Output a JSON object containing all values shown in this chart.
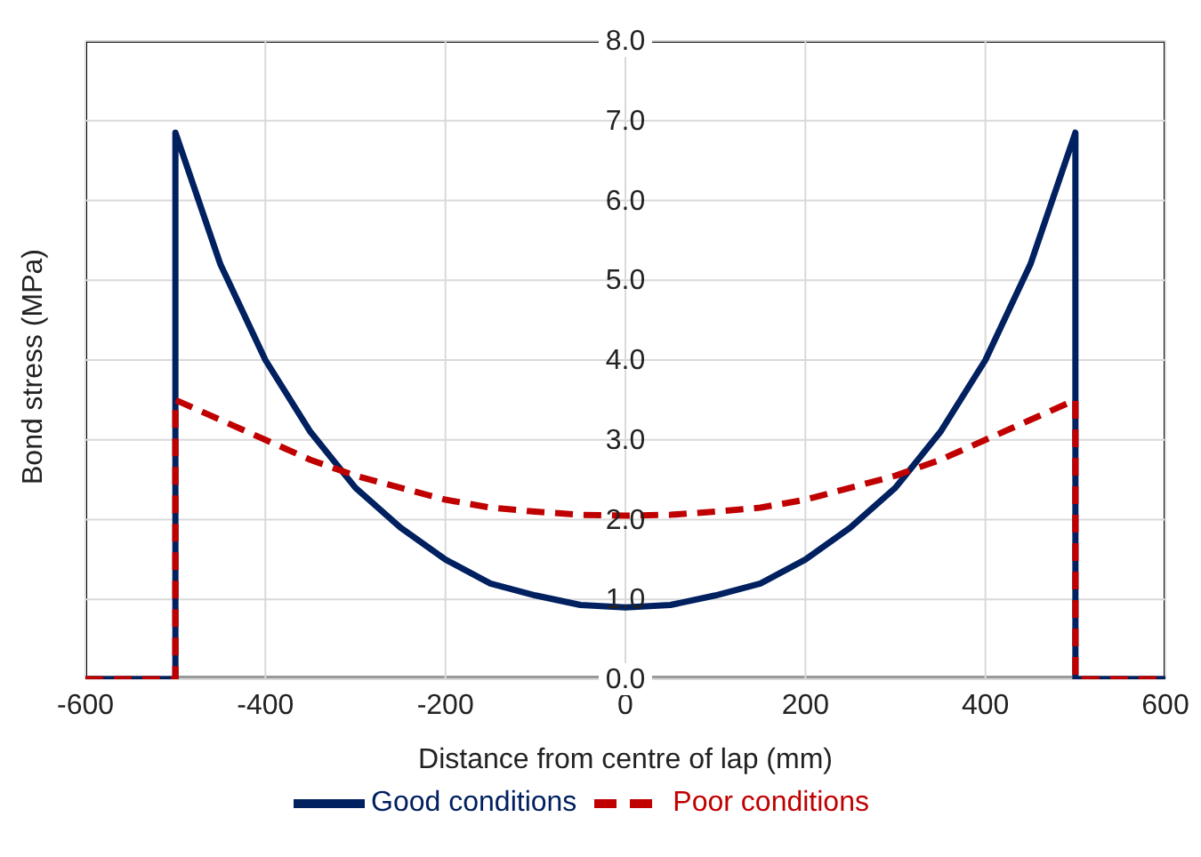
{
  "chart_data": {
    "type": "line",
    "xlabel": "Distance from centre of lap  (mm)",
    "ylabel": "Bond stress (MPa)",
    "series": [
      {
        "name": "Good conditions",
        "color": "#002060",
        "line_style": "solid",
        "x": [
          -600,
          -500,
          -500,
          -450,
          -400,
          -350,
          -300,
          -250,
          -200,
          -150,
          -100,
          -50,
          0,
          50,
          100,
          150,
          200,
          250,
          300,
          350,
          400,
          450,
          500,
          500,
          600
        ],
        "values": [
          0,
          0,
          6.85,
          5.2,
          4.0,
          3.1,
          2.4,
          1.9,
          1.5,
          1.2,
          1.05,
          0.93,
          0.9,
          0.93,
          1.05,
          1.2,
          1.5,
          1.9,
          2.4,
          3.1,
          4.0,
          5.2,
          6.85,
          0,
          0
        ]
      },
      {
        "name": "Poor conditions",
        "color": "#c00000",
        "line_style": "dashed",
        "x": [
          -600,
          -500,
          -500,
          -450,
          -400,
          -350,
          -300,
          -250,
          -200,
          -150,
          -100,
          -50,
          0,
          50,
          100,
          150,
          200,
          250,
          300,
          350,
          400,
          450,
          500,
          500,
          600
        ],
        "values": [
          0,
          0,
          3.5,
          3.25,
          3.0,
          2.75,
          2.55,
          2.4,
          2.25,
          2.15,
          2.1,
          2.06,
          2.05,
          2.06,
          2.1,
          2.15,
          2.25,
          2.4,
          2.55,
          2.75,
          3.0,
          3.25,
          3.5,
          0,
          0
        ]
      }
    ],
    "xlim": [
      -600,
      600
    ],
    "xticks": [
      -600,
      -400,
      -200,
      0,
      200,
      400,
      600
    ],
    "ylim": [
      0,
      8
    ],
    "yticks": [
      {
        "value": 0,
        "label": "0.0"
      },
      {
        "value": 1,
        "label": "1.0"
      },
      {
        "value": 2,
        "label": "2.0"
      },
      {
        "value": 3,
        "label": "3.0"
      },
      {
        "value": 4,
        "label": "4.0"
      },
      {
        "value": 5,
        "label": "5.0"
      },
      {
        "value": 6,
        "label": "6.0"
      },
      {
        "value": 7,
        "label": "7.0"
      },
      {
        "value": 8,
        "label": "8.0"
      }
    ],
    "grid": true,
    "legend": "bottom",
    "marker": "none"
  }
}
